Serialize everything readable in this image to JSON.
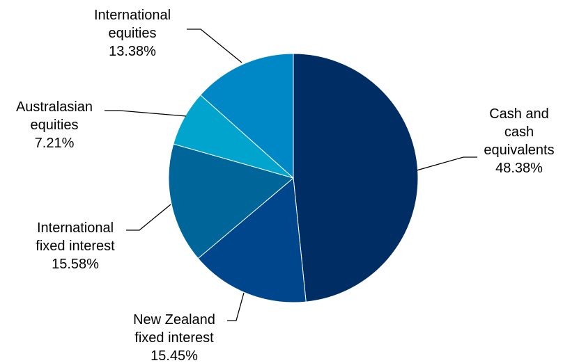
{
  "chart_data": {
    "type": "pie",
    "title": "",
    "start_angle_deg": 0,
    "direction": "clockwise",
    "slices": [
      {
        "lines": [
          "Cash and",
          "cash",
          "equivalents"
        ],
        "pct_label": "48.38%",
        "value": 48.38,
        "color": "#002d63"
      },
      {
        "lines": [
          "New Zealand",
          "fixed interest"
        ],
        "pct_label": "15.45%",
        "value": 15.45,
        "color": "#00468c"
      },
      {
        "lines": [
          "International",
          "fixed interest"
        ],
        "pct_label": "15.58%",
        "value": 15.58,
        "color": "#006699"
      },
      {
        "lines": [
          "Australasian",
          "equities"
        ],
        "pct_label": "7.21%",
        "value": 7.21,
        "color": "#00a4cc"
      },
      {
        "lines": [
          "International",
          "equities"
        ],
        "pct_label": "13.38%",
        "value": 13.38,
        "color": "#0088c6"
      }
    ]
  }
}
